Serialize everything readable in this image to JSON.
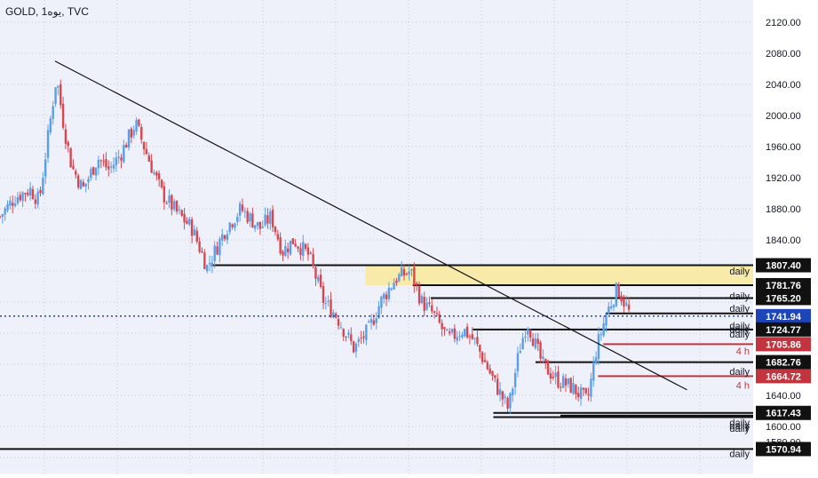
{
  "title": "GOLD, 1یوه, TVC",
  "colors": {
    "background": "#eef1fa",
    "grid": "#c5c9d6",
    "candle_up": "#5b9ee8",
    "candle_down": "#d94650",
    "price_tag_dark": "#111111",
    "price_tag_red": "#c2353f",
    "price_tag_blue": "#1d44b8",
    "zone_fill": "#f8eaa8",
    "line": "#111111"
  },
  "chart_data": {
    "type": "candlestick",
    "ylim": [
      1540,
      2140
    ],
    "y_ticks": [
      "2120.00",
      "2080.00",
      "2040.00",
      "2000.00",
      "1960.00",
      "1920.00",
      "1880.00",
      "1840.00",
      "1640.00",
      "1600.00",
      "1580.00"
    ],
    "grid": true,
    "price_tags": [
      {
        "text": "1807.40",
        "value": 1807.4,
        "style": "dark"
      },
      {
        "text": "1781.76",
        "value": 1781.76,
        "style": "dark"
      },
      {
        "text": "1765.20",
        "value": 1765.2,
        "style": "dark"
      },
      {
        "text": "1741.94",
        "value": 1741.94,
        "style": "blue"
      },
      {
        "text": "1724.77",
        "value": 1724.77,
        "style": "dark"
      },
      {
        "text": "1705.86",
        "value": 1705.86,
        "style": "red"
      },
      {
        "text": "1682.76",
        "value": 1682.76,
        "style": "dark"
      },
      {
        "text": "1664.72",
        "value": 1664.72,
        "style": "red"
      },
      {
        "text": "1617.43",
        "value": 1617.43,
        "style": "dark"
      },
      {
        "text": "1570.94",
        "value": 1570.94,
        "style": "dark"
      }
    ],
    "level_labels": [
      {
        "text": "daily",
        "value": 1800,
        "style": "dark"
      },
      {
        "text": "daily",
        "value": 1768,
        "style": "dark"
      },
      {
        "text": "daily",
        "value": 1752,
        "style": "dark"
      },
      {
        "text": "daily",
        "value": 1730,
        "style": "dark"
      },
      {
        "text": "daily",
        "value": 1725,
        "style": "dark"
      },
      {
        "text": "daily",
        "value": 1719,
        "style": "dark"
      },
      {
        "text": "4 h",
        "value": 1697,
        "style": "red"
      },
      {
        "text": "daily",
        "value": 1671,
        "style": "dark"
      },
      {
        "text": "4 h",
        "value": 1653,
        "style": "red"
      },
      {
        "text": "daily",
        "value": 1605,
        "style": "dark"
      },
      {
        "text": "daily",
        "value": 1601,
        "style": "dark"
      },
      {
        "text": "daily",
        "value": 1598,
        "style": "dark"
      },
      {
        "text": "daily",
        "value": 1565,
        "style": "dark"
      }
    ],
    "levels": [
      {
        "price": 1807.4,
        "from": 0.28,
        "to": 1.0,
        "color": "dark",
        "width": 2
      },
      {
        "price": 1781.76,
        "from": 0.548,
        "to": 1.0,
        "color": "dark",
        "width": 2
      },
      {
        "price": 1765.2,
        "from": 0.572,
        "to": 1.0,
        "color": "dark",
        "width": 2
      },
      {
        "price": 1745.5,
        "from": 0.804,
        "to": 1.0,
        "color": "dark",
        "width": 2
      },
      {
        "price": 1724.77,
        "from": 0.628,
        "to": 1.0,
        "color": "dark",
        "width": 2
      },
      {
        "price": 1705.86,
        "from": 0.801,
        "to": 1.0,
        "color": "red",
        "width": 2
      },
      {
        "price": 1682.76,
        "from": 0.711,
        "to": 1.0,
        "color": "dark",
        "width": 2
      },
      {
        "price": 1664.72,
        "from": 0.794,
        "to": 1.0,
        "color": "red",
        "width": 2
      },
      {
        "price": 1617.43,
        "from": 0.655,
        "to": 1.0,
        "color": "dark",
        "width": 2
      },
      {
        "price": 1614.0,
        "from": 0.744,
        "to": 1.0,
        "color": "dark",
        "width": 2
      },
      {
        "price": 1612.0,
        "from": 0.655,
        "to": 1.0,
        "color": "dark",
        "width": 2
      },
      {
        "price": 1570.94,
        "from": 0.0,
        "to": 1.0,
        "color": "dark",
        "width": 2
      }
    ],
    "zone": {
      "top": 1807.4,
      "bottom": 1781.76,
      "from": 0.485,
      "to": 1.0
    },
    "price_line": {
      "value": 1741.94,
      "style": "dotted"
    },
    "trendline": {
      "t1": 0.073,
      "p1": 2070,
      "t2": 0.865,
      "p2": 1630
    },
    "waypoints": [
      [
        0.0,
        1870
      ],
      [
        0.02,
        1895
      ],
      [
        0.04,
        1905
      ],
      [
        0.052,
        1890
      ],
      [
        0.062,
        1960
      ],
      [
        0.075,
        2050
      ],
      [
        0.085,
        1985
      ],
      [
        0.095,
        1935
      ],
      [
        0.11,
        1905
      ],
      [
        0.13,
        1945
      ],
      [
        0.145,
        1930
      ],
      [
        0.16,
        1950
      ],
      [
        0.18,
        1990
      ],
      [
        0.195,
        1950
      ],
      [
        0.215,
        1900
      ],
      [
        0.235,
        1875
      ],
      [
        0.255,
        1855
      ],
      [
        0.275,
        1805
      ],
      [
        0.3,
        1855
      ],
      [
        0.32,
        1880
      ],
      [
        0.345,
        1855
      ],
      [
        0.36,
        1870
      ],
      [
        0.375,
        1825
      ],
      [
        0.39,
        1840
      ],
      [
        0.41,
        1820
      ],
      [
        0.43,
        1760
      ],
      [
        0.445,
        1745
      ],
      [
        0.47,
        1700
      ],
      [
        0.49,
        1725
      ],
      [
        0.505,
        1760
      ],
      [
        0.525,
        1790
      ],
      [
        0.545,
        1800
      ],
      [
        0.56,
        1760
      ],
      [
        0.575,
        1745
      ],
      [
        0.595,
        1712
      ],
      [
        0.615,
        1725
      ],
      [
        0.63,
        1710
      ],
      [
        0.66,
        1650
      ],
      [
        0.675,
        1622
      ],
      [
        0.69,
        1700
      ],
      [
        0.7,
        1735
      ],
      [
        0.72,
        1680
      ],
      [
        0.74,
        1660
      ],
      [
        0.76,
        1650
      ],
      [
        0.78,
        1632
      ],
      [
        0.792,
        1700
      ],
      [
        0.805,
        1745
      ],
      [
        0.82,
        1778
      ],
      [
        0.835,
        1747
      ]
    ]
  }
}
